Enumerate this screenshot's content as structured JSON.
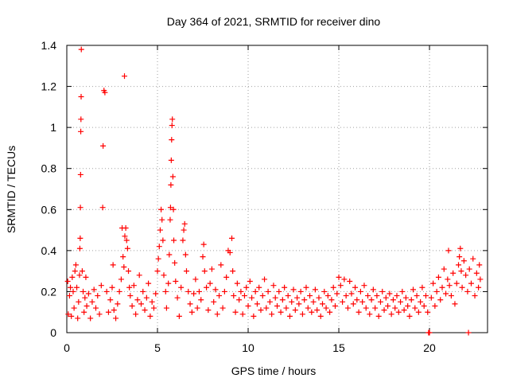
{
  "chart_data": {
    "type": "scatter",
    "title": "Day 364 of 2021, SRMTID for receiver dino",
    "xlabel": "GPS time / hours",
    "ylabel": "SRMTID / TECUs",
    "xlim": [
      0,
      23.2
    ],
    "ylim": [
      0,
      1.4
    ],
    "xticks": [
      0,
      5,
      10,
      15,
      20
    ],
    "xtick_labels": [
      "0",
      "5",
      "10",
      "15",
      "20"
    ],
    "yticks": [
      0,
      0.2,
      0.4,
      0.6,
      0.8,
      1,
      1.2,
      1.4
    ],
    "ytick_labels": [
      "0",
      "0.2",
      "0.4",
      "0.6",
      "0.8",
      "1",
      "1.2",
      "1.4"
    ],
    "grid": true,
    "marker": "+",
    "marker_color": "#ff0000",
    "series": [
      {
        "name": "SRMTID",
        "points": [
          [
            0.05,
            0.25
          ],
          [
            0.08,
            0.09
          ],
          [
            0.15,
            0.18
          ],
          [
            0.2,
            0.22
          ],
          [
            0.25,
            0.08
          ],
          [
            0.3,
            0.27
          ],
          [
            0.35,
            0.2
          ],
          [
            0.4,
            0.12
          ],
          [
            0.45,
            0.3
          ],
          [
            0.5,
            0.33
          ],
          [
            0.55,
            0.22
          ],
          [
            0.6,
            0.07
          ],
          [
            0.65,
            0.15
          ],
          [
            0.7,
            0.28
          ],
          [
            0.72,
            0.41
          ],
          [
            0.74,
            0.46
          ],
          [
            0.75,
            0.61
          ],
          [
            0.76,
            0.77
          ],
          [
            0.77,
            0.98
          ],
          [
            0.78,
            1.04
          ],
          [
            0.79,
            1.15
          ],
          [
            0.8,
            1.38
          ],
          [
            0.85,
            0.3
          ],
          [
            0.9,
            0.2
          ],
          [
            0.95,
            0.1
          ],
          [
            1.0,
            0.17
          ],
          [
            1.05,
            0.27
          ],
          [
            1.1,
            0.13
          ],
          [
            1.2,
            0.19
          ],
          [
            1.3,
            0.07
          ],
          [
            1.4,
            0.15
          ],
          [
            1.5,
            0.21
          ],
          [
            1.6,
            0.12
          ],
          [
            1.7,
            0.18
          ],
          [
            1.8,
            0.09
          ],
          [
            1.9,
            0.23
          ],
          [
            1.98,
            0.61
          ],
          [
            2.0,
            0.91
          ],
          [
            2.05,
            1.18
          ],
          [
            2.1,
            1.17
          ],
          [
            2.2,
            0.2
          ],
          [
            2.3,
            0.1
          ],
          [
            2.4,
            0.16
          ],
          [
            2.5,
            0.22
          ],
          [
            2.55,
            0.33
          ],
          [
            2.6,
            0.11
          ],
          [
            2.7,
            0.07
          ],
          [
            2.8,
            0.14
          ],
          [
            2.9,
            0.2
          ],
          [
            3.0,
            0.26
          ],
          [
            3.05,
            0.51
          ],
          [
            3.1,
            0.37
          ],
          [
            3.15,
            0.32
          ],
          [
            3.18,
            1.25
          ],
          [
            3.2,
            0.47
          ],
          [
            3.25,
            0.51
          ],
          [
            3.3,
            0.45
          ],
          [
            3.35,
            0.41
          ],
          [
            3.4,
            0.3
          ],
          [
            3.45,
            0.22
          ],
          [
            3.5,
            0.18
          ],
          [
            3.6,
            0.13
          ],
          [
            3.7,
            0.23
          ],
          [
            3.8,
            0.09
          ],
          [
            3.9,
            0.16
          ],
          [
            4.0,
            0.28
          ],
          [
            4.1,
            0.14
          ],
          [
            4.2,
            0.2
          ],
          [
            4.3,
            0.11
          ],
          [
            4.4,
            0.17
          ],
          [
            4.5,
            0.24
          ],
          [
            4.6,
            0.08
          ],
          [
            4.7,
            0.15
          ],
          [
            4.8,
            0.12
          ],
          [
            4.9,
            0.19
          ],
          [
            5.0,
            0.3
          ],
          [
            5.05,
            0.36
          ],
          [
            5.1,
            0.42
          ],
          [
            5.15,
            0.5
          ],
          [
            5.2,
            0.6
          ],
          [
            5.25,
            0.55
          ],
          [
            5.3,
            0.45
          ],
          [
            5.35,
            0.28
          ],
          [
            5.45,
            0.2
          ],
          [
            5.5,
            0.12
          ],
          [
            5.6,
            0.24
          ],
          [
            5.65,
            0.38
          ],
          [
            5.7,
            0.55
          ],
          [
            5.72,
            0.61
          ],
          [
            5.74,
            0.72
          ],
          [
            5.76,
            0.84
          ],
          [
            5.78,
            0.94
          ],
          [
            5.8,
            1.01
          ],
          [
            5.82,
            1.04
          ],
          [
            5.85,
            0.76
          ],
          [
            5.88,
            0.6
          ],
          [
            5.9,
            0.45
          ],
          [
            5.95,
            0.34
          ],
          [
            6.0,
            0.25
          ],
          [
            6.1,
            0.17
          ],
          [
            6.2,
            0.08
          ],
          [
            6.3,
            0.22
          ],
          [
            6.4,
            0.45
          ],
          [
            6.45,
            0.5
          ],
          [
            6.5,
            0.53
          ],
          [
            6.55,
            0.38
          ],
          [
            6.6,
            0.3
          ],
          [
            6.7,
            0.2
          ],
          [
            6.8,
            0.14
          ],
          [
            6.9,
            0.1
          ],
          [
            7.0,
            0.19
          ],
          [
            7.1,
            0.26
          ],
          [
            7.2,
            0.12
          ],
          [
            7.3,
            0.2
          ],
          [
            7.4,
            0.16
          ],
          [
            7.5,
            0.37
          ],
          [
            7.55,
            0.43
          ],
          [
            7.6,
            0.3
          ],
          [
            7.7,
            0.22
          ],
          [
            7.8,
            0.11
          ],
          [
            7.9,
            0.24
          ],
          [
            8.0,
            0.31
          ],
          [
            8.1,
            0.15
          ],
          [
            8.2,
            0.21
          ],
          [
            8.3,
            0.09
          ],
          [
            8.4,
            0.18
          ],
          [
            8.5,
            0.33
          ],
          [
            8.6,
            0.12
          ],
          [
            8.7,
            0.2
          ],
          [
            8.8,
            0.27
          ],
          [
            8.9,
            0.4
          ],
          [
            9.0,
            0.39
          ],
          [
            9.1,
            0.46
          ],
          [
            9.15,
            0.3
          ],
          [
            9.2,
            0.18
          ],
          [
            9.3,
            0.1
          ],
          [
            9.4,
            0.24
          ],
          [
            9.5,
            0.16
          ],
          [
            9.6,
            0.2
          ],
          [
            9.7,
            0.09
          ],
          [
            9.8,
            0.18
          ],
          [
            9.9,
            0.22
          ],
          [
            10.0,
            0.13
          ],
          [
            10.1,
            0.25
          ],
          [
            10.2,
            0.17
          ],
          [
            10.3,
            0.08
          ],
          [
            10.4,
            0.2
          ],
          [
            10.5,
            0.14
          ],
          [
            10.6,
            0.22
          ],
          [
            10.7,
            0.11
          ],
          [
            10.8,
            0.18
          ],
          [
            10.9,
            0.26
          ],
          [
            11.0,
            0.12
          ],
          [
            11.1,
            0.2
          ],
          [
            11.2,
            0.15
          ],
          [
            11.3,
            0.09
          ],
          [
            11.4,
            0.23
          ],
          [
            11.5,
            0.17
          ],
          [
            11.6,
            0.13
          ],
          [
            11.7,
            0.2
          ],
          [
            11.8,
            0.1
          ],
          [
            11.9,
            0.16
          ],
          [
            12.0,
            0.22
          ],
          [
            12.1,
            0.12
          ],
          [
            12.2,
            0.18
          ],
          [
            12.3,
            0.08
          ],
          [
            12.4,
            0.15
          ],
          [
            12.5,
            0.21
          ],
          [
            12.6,
            0.11
          ],
          [
            12.7,
            0.17
          ],
          [
            12.8,
            0.14
          ],
          [
            12.9,
            0.2
          ],
          [
            13.0,
            0.09
          ],
          [
            13.1,
            0.16
          ],
          [
            13.2,
            0.22
          ],
          [
            13.3,
            0.12
          ],
          [
            13.4,
            0.18
          ],
          [
            13.5,
            0.1
          ],
          [
            13.6,
            0.15
          ],
          [
            13.7,
            0.21
          ],
          [
            13.8,
            0.11
          ],
          [
            13.9,
            0.17
          ],
          [
            14.0,
            0.08
          ],
          [
            14.1,
            0.14
          ],
          [
            14.2,
            0.2
          ],
          [
            14.3,
            0.12
          ],
          [
            14.4,
            0.18
          ],
          [
            14.5,
            0.1
          ],
          [
            14.6,
            0.16
          ],
          [
            14.7,
            0.22
          ],
          [
            14.8,
            0.13
          ],
          [
            14.9,
            0.19
          ],
          [
            15.0,
            0.27
          ],
          [
            15.1,
            0.23
          ],
          [
            15.2,
            0.15
          ],
          [
            15.3,
            0.26
          ],
          [
            15.4,
            0.18
          ],
          [
            15.5,
            0.12
          ],
          [
            15.6,
            0.25
          ],
          [
            15.7,
            0.19
          ],
          [
            15.8,
            0.14
          ],
          [
            15.9,
            0.22
          ],
          [
            16.0,
            0.16
          ],
          [
            16.1,
            0.1
          ],
          [
            16.2,
            0.2
          ],
          [
            16.3,
            0.15
          ],
          [
            16.4,
            0.23
          ],
          [
            16.5,
            0.12
          ],
          [
            16.6,
            0.18
          ],
          [
            16.7,
            0.09
          ],
          [
            16.8,
            0.16
          ],
          [
            16.9,
            0.21
          ],
          [
            17.0,
            0.12
          ],
          [
            17.1,
            0.18
          ],
          [
            17.2,
            0.08
          ],
          [
            17.3,
            0.15
          ],
          [
            17.4,
            0.2
          ],
          [
            17.5,
            0.11
          ],
          [
            17.6,
            0.17
          ],
          [
            17.7,
            0.13
          ],
          [
            17.8,
            0.19
          ],
          [
            17.9,
            0.09
          ],
          [
            18.0,
            0.16
          ],
          [
            18.1,
            0.12
          ],
          [
            18.2,
            0.18
          ],
          [
            18.3,
            0.1
          ],
          [
            18.4,
            0.15
          ],
          [
            18.5,
            0.2
          ],
          [
            18.6,
            0.11
          ],
          [
            18.7,
            0.17
          ],
          [
            18.8,
            0.13
          ],
          [
            18.9,
            0.08
          ],
          [
            19.0,
            0.16
          ],
          [
            19.1,
            0.21
          ],
          [
            19.2,
            0.12
          ],
          [
            19.3,
            0.18
          ],
          [
            19.4,
            0.1
          ],
          [
            19.5,
            0.15
          ],
          [
            19.6,
            0.22
          ],
          [
            19.7,
            0.13
          ],
          [
            19.8,
            0.18
          ],
          [
            19.9,
            0.1
          ],
          [
            19.95,
            0.0
          ],
          [
            20.0,
            0.0
          ],
          [
            20.1,
            0.17
          ],
          [
            20.2,
            0.24
          ],
          [
            20.3,
            0.13
          ],
          [
            20.4,
            0.2
          ],
          [
            20.5,
            0.27
          ],
          [
            20.6,
            0.16
          ],
          [
            20.7,
            0.22
          ],
          [
            20.8,
            0.31
          ],
          [
            20.9,
            0.19
          ],
          [
            21.0,
            0.26
          ],
          [
            21.05,
            0.4
          ],
          [
            21.1,
            0.23
          ],
          [
            21.2,
            0.18
          ],
          [
            21.3,
            0.29
          ],
          [
            21.4,
            0.14
          ],
          [
            21.5,
            0.24
          ],
          [
            21.6,
            0.33
          ],
          [
            21.65,
            0.37
          ],
          [
            21.7,
            0.41
          ],
          [
            21.75,
            0.3
          ],
          [
            21.8,
            0.22
          ],
          [
            21.9,
            0.35
          ],
          [
            22.0,
            0.28
          ],
          [
            22.1,
            0.2
          ],
          [
            22.15,
            0.0
          ],
          [
            22.2,
            0.31
          ],
          [
            22.3,
            0.24
          ],
          [
            22.4,
            0.36
          ],
          [
            22.5,
            0.18
          ],
          [
            22.6,
            0.29
          ],
          [
            22.7,
            0.22
          ],
          [
            22.75,
            0.33
          ],
          [
            22.8,
            0.26
          ]
        ]
      }
    ]
  }
}
